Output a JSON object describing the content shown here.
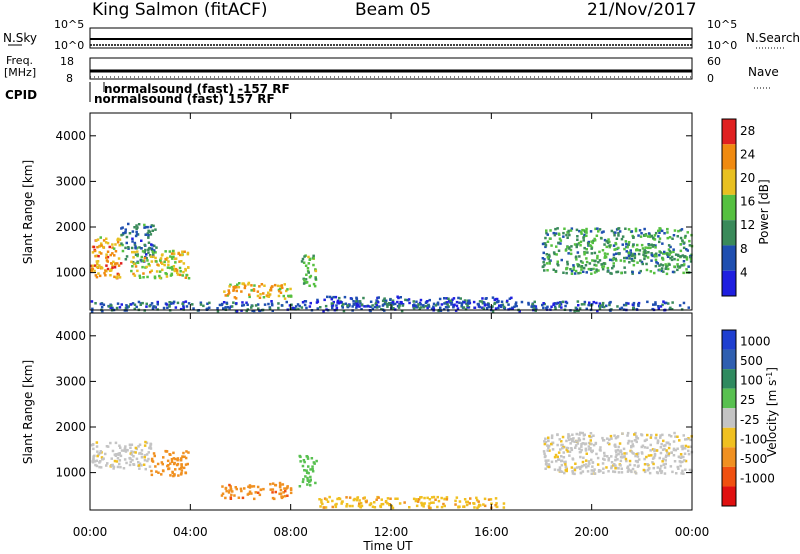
{
  "header": {
    "station": "King Salmon (fitACF)",
    "beam": "Beam 05",
    "date": "21/Nov/2017"
  },
  "top_panels": {
    "nsky_label": "N.Sky",
    "nsky_ticks": [
      "10^5",
      "10^0"
    ],
    "nsearch_label": "N.Search",
    "nsearch_ticks": [
      "10^5",
      "10^0"
    ],
    "freq_label_1": "Freq.",
    "freq_label_2": "[MHz]",
    "freq_ticks": [
      "18",
      "8"
    ],
    "nave_label": "Nave",
    "nave_ticks": [
      "60",
      "0"
    ],
    "cpid_label": "CPID",
    "cpid_entries": [
      "normalsound (fast) -157 RF",
      "normalsound (fast) 157 RF"
    ]
  },
  "colors": {
    "power": [
      "#1f1fe0",
      "#1f4fb0",
      "#3a8a5a",
      "#55c040",
      "#e8c020",
      "#f08a10",
      "#e02020"
    ],
    "velocity": [
      "#1f3fd0",
      "#2f5fb0",
      "#2f8a5f",
      "#58c050",
      "#c4c4c4",
      "#f0c020",
      "#f09020",
      "#f05010",
      "#e01010"
    ],
    "ground_gray": "#c4c4c4"
  },
  "chart_data": [
    {
      "type": "heatmap",
      "parameter": "Power",
      "ylabel": "Slant Range [km]",
      "ylim": [
        180,
        4500
      ],
      "yticks": [
        "1000",
        "2000",
        "3000",
        "4000"
      ],
      "colorbar_label": "Power [dB]",
      "colorbar_ticks": [
        "4",
        "8",
        "12",
        "16",
        "20",
        "24",
        "28"
      ],
      "clim": [
        0,
        30
      ],
      "regions": [
        {
          "t0": 0.0,
          "t1": 1.2,
          "r0": 900,
          "r1": 1800,
          "value": 22
        },
        {
          "t0": 1.2,
          "t1": 2.6,
          "r0": 1250,
          "r1": 2100,
          "value": 9
        },
        {
          "t0": 1.6,
          "t1": 3.9,
          "r0": 900,
          "r1": 1500,
          "value": 18
        },
        {
          "t0": 5.3,
          "t1": 8.0,
          "r0": 450,
          "r1": 800,
          "value": 20
        },
        {
          "t0": 8.4,
          "t1": 9.0,
          "r0": 700,
          "r1": 1400,
          "value": 14
        },
        {
          "t0": 9.0,
          "t1": 16.8,
          "r0": 250,
          "r1": 500,
          "value": 6
        },
        {
          "t0": 18.0,
          "t1": 24.0,
          "r0": 1000,
          "r1": 2000,
          "value": 12
        },
        {
          "t0": 0.0,
          "t1": 24.0,
          "r0": 180,
          "r1": 400,
          "value": 7
        }
      ]
    },
    {
      "type": "heatmap",
      "parameter": "Velocity",
      "ylabel": "Slant Range [km]",
      "ylim": [
        180,
        4500
      ],
      "yticks": [
        "1000",
        "2000",
        "3000",
        "4000"
      ],
      "xlabel": "Time UT",
      "xticks": [
        "00:00",
        "04:00",
        "08:00",
        "12:00",
        "16:00",
        "20:00",
        "00:00"
      ],
      "xlim": [
        0,
        24
      ],
      "colorbar_label": "Velocity [m s^-1]",
      "colorbar_ticks": [
        "1000",
        "500",
        "100",
        "25",
        "-25",
        "-100",
        "-500",
        "-1000"
      ],
      "regions": [
        {
          "t0": 0.0,
          "t1": 2.4,
          "r0": 1100,
          "r1": 1700,
          "value": "ground"
        },
        {
          "t0": 2.4,
          "t1": 3.9,
          "r0": 950,
          "r1": 1500,
          "value": -300
        },
        {
          "t0": 5.2,
          "t1": 8.0,
          "r0": 450,
          "r1": 800,
          "value": -400
        },
        {
          "t0": 8.3,
          "t1": 9.0,
          "r0": 700,
          "r1": 1400,
          "value": 60
        },
        {
          "t0": 9.0,
          "t1": 16.5,
          "r0": 250,
          "r1": 500,
          "value": -80
        },
        {
          "t0": 18.0,
          "t1": 24.0,
          "r0": 1000,
          "r1": 1900,
          "value": "ground"
        }
      ]
    }
  ]
}
